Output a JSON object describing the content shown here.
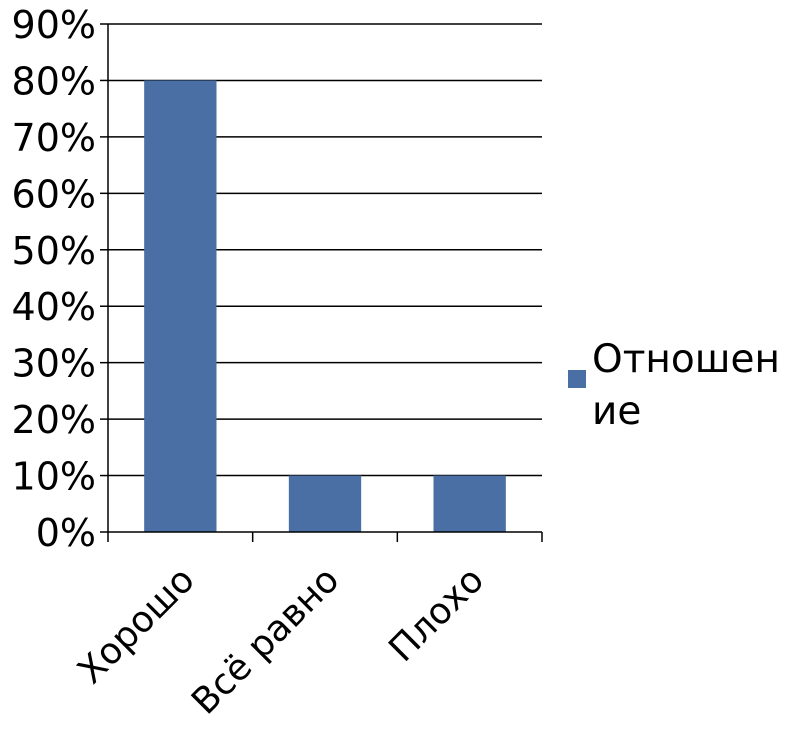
{
  "chart_data": {
    "type": "bar",
    "categories": [
      "Хорошо",
      "Всё равно",
      "Плохо"
    ],
    "series": [
      {
        "name": "Отношение",
        "values": [
          80,
          10,
          10
        ],
        "color": "#4a6fa5"
      }
    ],
    "ylim": [
      0,
      90
    ],
    "y_ticks": [
      "0%",
      "10%",
      "20%",
      "30%",
      "40%",
      "50%",
      "60%",
      "70%",
      "80%",
      "90%"
    ],
    "y_unit": "%",
    "grid": true,
    "legend_position": "right"
  }
}
